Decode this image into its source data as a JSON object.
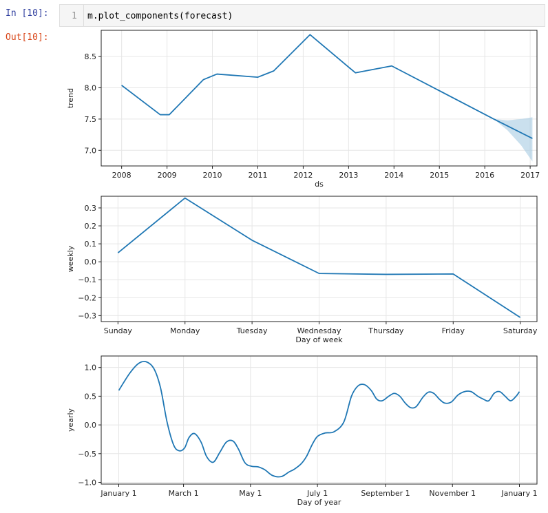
{
  "cell": {
    "in_prompt": "In [10]:",
    "line_number": "1",
    "code": "m.plot_components(forecast)",
    "out_prompt": "Out[10]:"
  },
  "chart_data": [
    {
      "type": "line",
      "ylabel": "trend",
      "xlabel": "ds",
      "x_ticks": [
        "2008",
        "2009",
        "2010",
        "2011",
        "2012",
        "2013",
        "2014",
        "2015",
        "2016",
        "2017"
      ],
      "x_range": [
        2007.55,
        2017.15
      ],
      "y_ticks": [
        "7.0",
        "7.5",
        "8.0",
        "8.5"
      ],
      "y_tick_values": [
        7.0,
        7.5,
        8.0,
        8.5
      ],
      "ylim": [
        6.75,
        8.92
      ],
      "grid": true,
      "series": [
        {
          "x": [
            2008.0,
            2008.85,
            2009.05,
            2009.8,
            2010.1,
            2011.0,
            2011.35,
            2012.15,
            2013.15,
            2013.95,
            2016.2,
            2017.05
          ],
          "y": [
            8.04,
            7.57,
            7.57,
            8.13,
            8.22,
            8.17,
            8.27,
            8.85,
            8.24,
            8.35,
            7.5,
            7.19
          ]
        }
      ],
      "uncertainty_band": {
        "x": [
          2016.2,
          2016.5,
          2016.8,
          2017.05
        ],
        "upper": [
          7.5,
          7.48,
          7.5,
          7.53
        ],
        "lower": [
          7.5,
          7.32,
          7.08,
          6.82
        ]
      }
    },
    {
      "type": "line",
      "ylabel": "weekly",
      "xlabel": "Day of week",
      "categories": [
        "Sunday",
        "Monday",
        "Tuesday",
        "Wednesday",
        "Thursday",
        "Friday",
        "Saturday"
      ],
      "y_ticks": [
        "0.3",
        "0.2",
        "0.1",
        "0.0",
        "−0.1",
        "−0.2",
        "−0.3"
      ],
      "y_tick_values": [
        0.3,
        0.2,
        0.1,
        0.0,
        -0.1,
        -0.2,
        -0.3
      ],
      "ylim": [
        -0.333,
        0.365
      ],
      "grid": true,
      "series": [
        {
          "values": [
            0.05,
            0.355,
            0.12,
            -0.065,
            -0.07,
            -0.068,
            -0.31
          ]
        }
      ]
    },
    {
      "type": "line",
      "ylabel": "yearly",
      "xlabel": "Day of year",
      "x_ticks": [
        "January 1",
        "March 1",
        "May 1",
        "July 1",
        "September 1",
        "November 1",
        "January 1"
      ],
      "x_tick_days": [
        0,
        59,
        120,
        181,
        243,
        304,
        365
      ],
      "x_range": [
        -16,
        381
      ],
      "y_ticks": [
        "1.0",
        "0.5",
        "0.0",
        "−0.5",
        "−1.0"
      ],
      "y_tick_values": [
        1.0,
        0.5,
        0.0,
        -0.5,
        -1.0
      ],
      "ylim": [
        -1.03,
        1.2
      ],
      "grid": true,
      "series": [
        {
          "x": [
            0,
            10,
            18,
            25,
            32,
            38,
            44,
            50,
            55,
            60,
            64,
            69,
            75,
            80,
            86,
            92,
            98,
            104,
            109,
            115,
            121,
            127,
            133,
            140,
            148,
            155,
            160,
            166,
            171,
            176,
            181,
            188,
            196,
            205,
            212,
            218,
            224,
            230,
            235,
            240,
            246,
            251,
            256,
            261,
            266,
            271,
            277,
            282,
            287,
            292,
            297,
            303,
            309,
            315,
            321,
            327,
            332,
            337,
            342,
            347,
            352,
            357,
            362,
            365
          ],
          "y": [
            0.6,
            0.9,
            1.07,
            1.1,
            0.98,
            0.65,
            0.05,
            -0.35,
            -0.45,
            -0.4,
            -0.22,
            -0.15,
            -0.3,
            -0.55,
            -0.65,
            -0.48,
            -0.3,
            -0.28,
            -0.42,
            -0.66,
            -0.72,
            -0.73,
            -0.78,
            -0.88,
            -0.9,
            -0.82,
            -0.77,
            -0.68,
            -0.55,
            -0.35,
            -0.2,
            -0.14,
            -0.12,
            0.05,
            0.5,
            0.68,
            0.7,
            0.6,
            0.45,
            0.42,
            0.5,
            0.55,
            0.5,
            0.38,
            0.3,
            0.32,
            0.48,
            0.57,
            0.55,
            0.45,
            0.38,
            0.4,
            0.52,
            0.58,
            0.58,
            0.5,
            0.45,
            0.42,
            0.55,
            0.58,
            0.5,
            0.42,
            0.5,
            0.58
          ]
        }
      ]
    }
  ],
  "colors": {
    "line": "#1f77b4",
    "band": "#a6cbe3",
    "grid": "#e6e6e6",
    "in_prompt": "#303f9f",
    "out_prompt": "#d84315"
  }
}
